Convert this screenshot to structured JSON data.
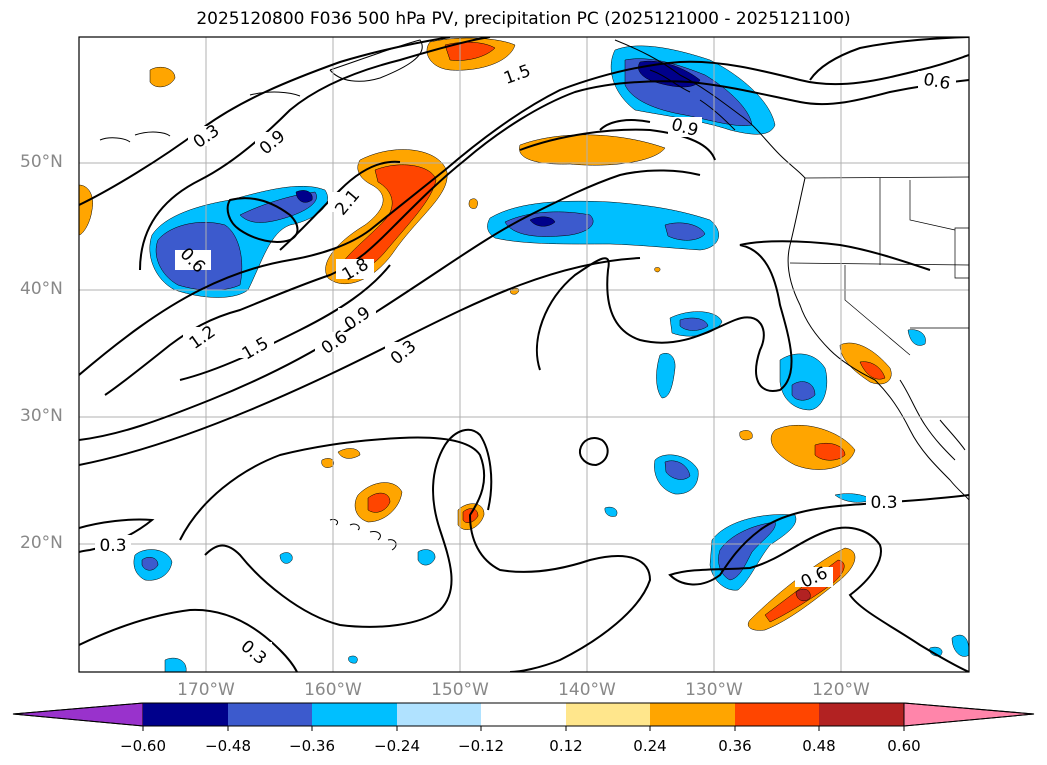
{
  "title": "2025120800 F036 500 hPa PV, precipitation PC (2025121000 - 2025121100)",
  "map": {
    "lat_labels": [
      "50°N",
      "40°N",
      "30°N",
      "20°N"
    ],
    "lon_labels": [
      "170°W",
      "160°W",
      "150°W",
      "140°W",
      "130°W",
      "120°W"
    ],
    "contour_labels": [
      "0.3",
      "0.9",
      "1.5",
      "2.1",
      "1.8",
      "0.6",
      "1.2",
      "1.5",
      "0.6",
      "0.9",
      "0.3",
      "0.9",
      "0.6",
      "0.3",
      "0.6",
      "0.3",
      "0.3"
    ]
  },
  "colorbar": {
    "ticks": [
      "−0.60",
      "−0.48",
      "−0.36",
      "−0.24",
      "−0.12",
      "0.12",
      "0.24",
      "0.36",
      "0.48",
      "0.60"
    ],
    "colors": [
      "#9932cc",
      "#00008b",
      "#3c5acd",
      "#00bfff",
      "#b0e2ff",
      "#ffffff",
      "#ffe68c",
      "#ffa500",
      "#ff4500",
      "#b22222",
      "#ff85aa"
    ]
  }
}
